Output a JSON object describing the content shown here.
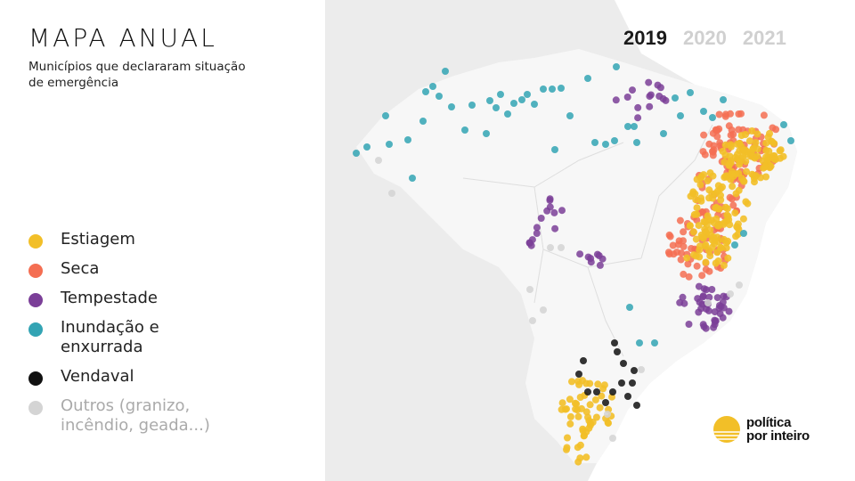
{
  "header": {
    "title": "MAPA ANUAL",
    "subtitle": "Municípios que declararam situação de emergência"
  },
  "years": [
    {
      "label": "2019",
      "active": true
    },
    {
      "label": "2020",
      "active": false
    },
    {
      "label": "2021",
      "active": false
    }
  ],
  "legend": [
    {
      "label": "Estiagem",
      "color": "#f2bf28"
    },
    {
      "label": "Seca",
      "color": "#f46e52"
    },
    {
      "label": "Tempestade",
      "color": "#7b3f98"
    },
    {
      "label": "Inundação e enxurrada",
      "color": "#33a4b4"
    },
    {
      "label": "Vendaval",
      "color": "#111111"
    },
    {
      "label": "Outros (granizo, incêndio, geada...)",
      "color": "#d4d4d4",
      "muted": true
    }
  ],
  "brand": {
    "line1": "política",
    "line2": "por inteiro"
  },
  "colors": {
    "year_active": "#1a1a1a",
    "year_inactive": "#d0d0d0",
    "land": "#ebebeb",
    "brazil": "#f6f6f6"
  }
}
